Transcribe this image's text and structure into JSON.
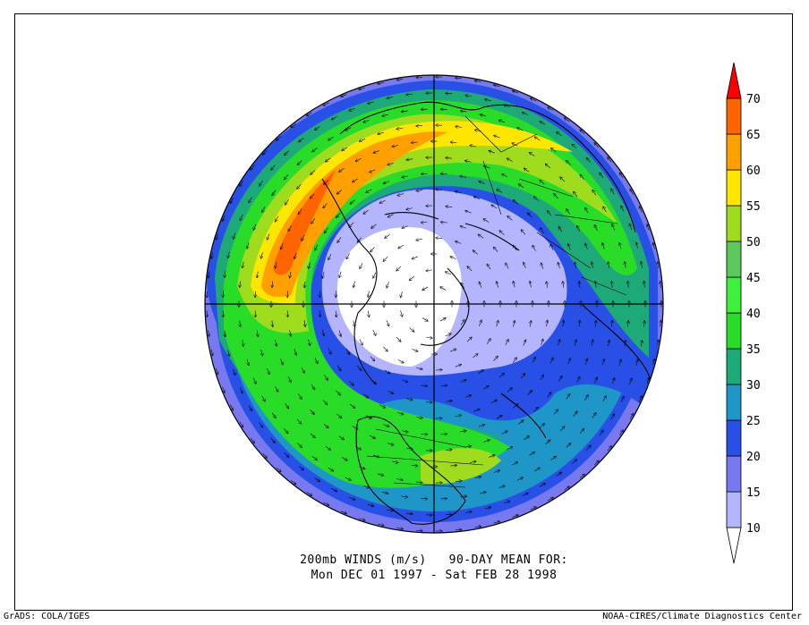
{
  "caption": {
    "line1": "200mb WINDS (m/s)   90-DAY MEAN FOR:",
    "line2": "Mon DEC 01 1997 - Sat FEB 28 1998"
  },
  "footer": {
    "left": "GrADS: COLA/IGES",
    "right": "NOAA-CIRES/Climate Diagnostics Center"
  },
  "colorbar": {
    "levels": [
      "10",
      "15",
      "20",
      "25",
      "30",
      "35",
      "40",
      "45",
      "50",
      "55",
      "60",
      "65",
      "70"
    ],
    "colors": [
      "#ffffff",
      "#b4b4ff",
      "#7878f0",
      "#2850e6",
      "#1e96c8",
      "#1eaa78",
      "#28dc28",
      "#3cf03c",
      "#5ac85a",
      "#a0dc1e",
      "#ffe600",
      "#ffa000",
      "#ff6400",
      "#ff0000"
    ]
  },
  "map": {
    "projection": "north-polar-stereographic",
    "variable": "wind speed",
    "icons": [
      "wind-vector-arrows",
      "coastline",
      "country-borders"
    ]
  }
}
